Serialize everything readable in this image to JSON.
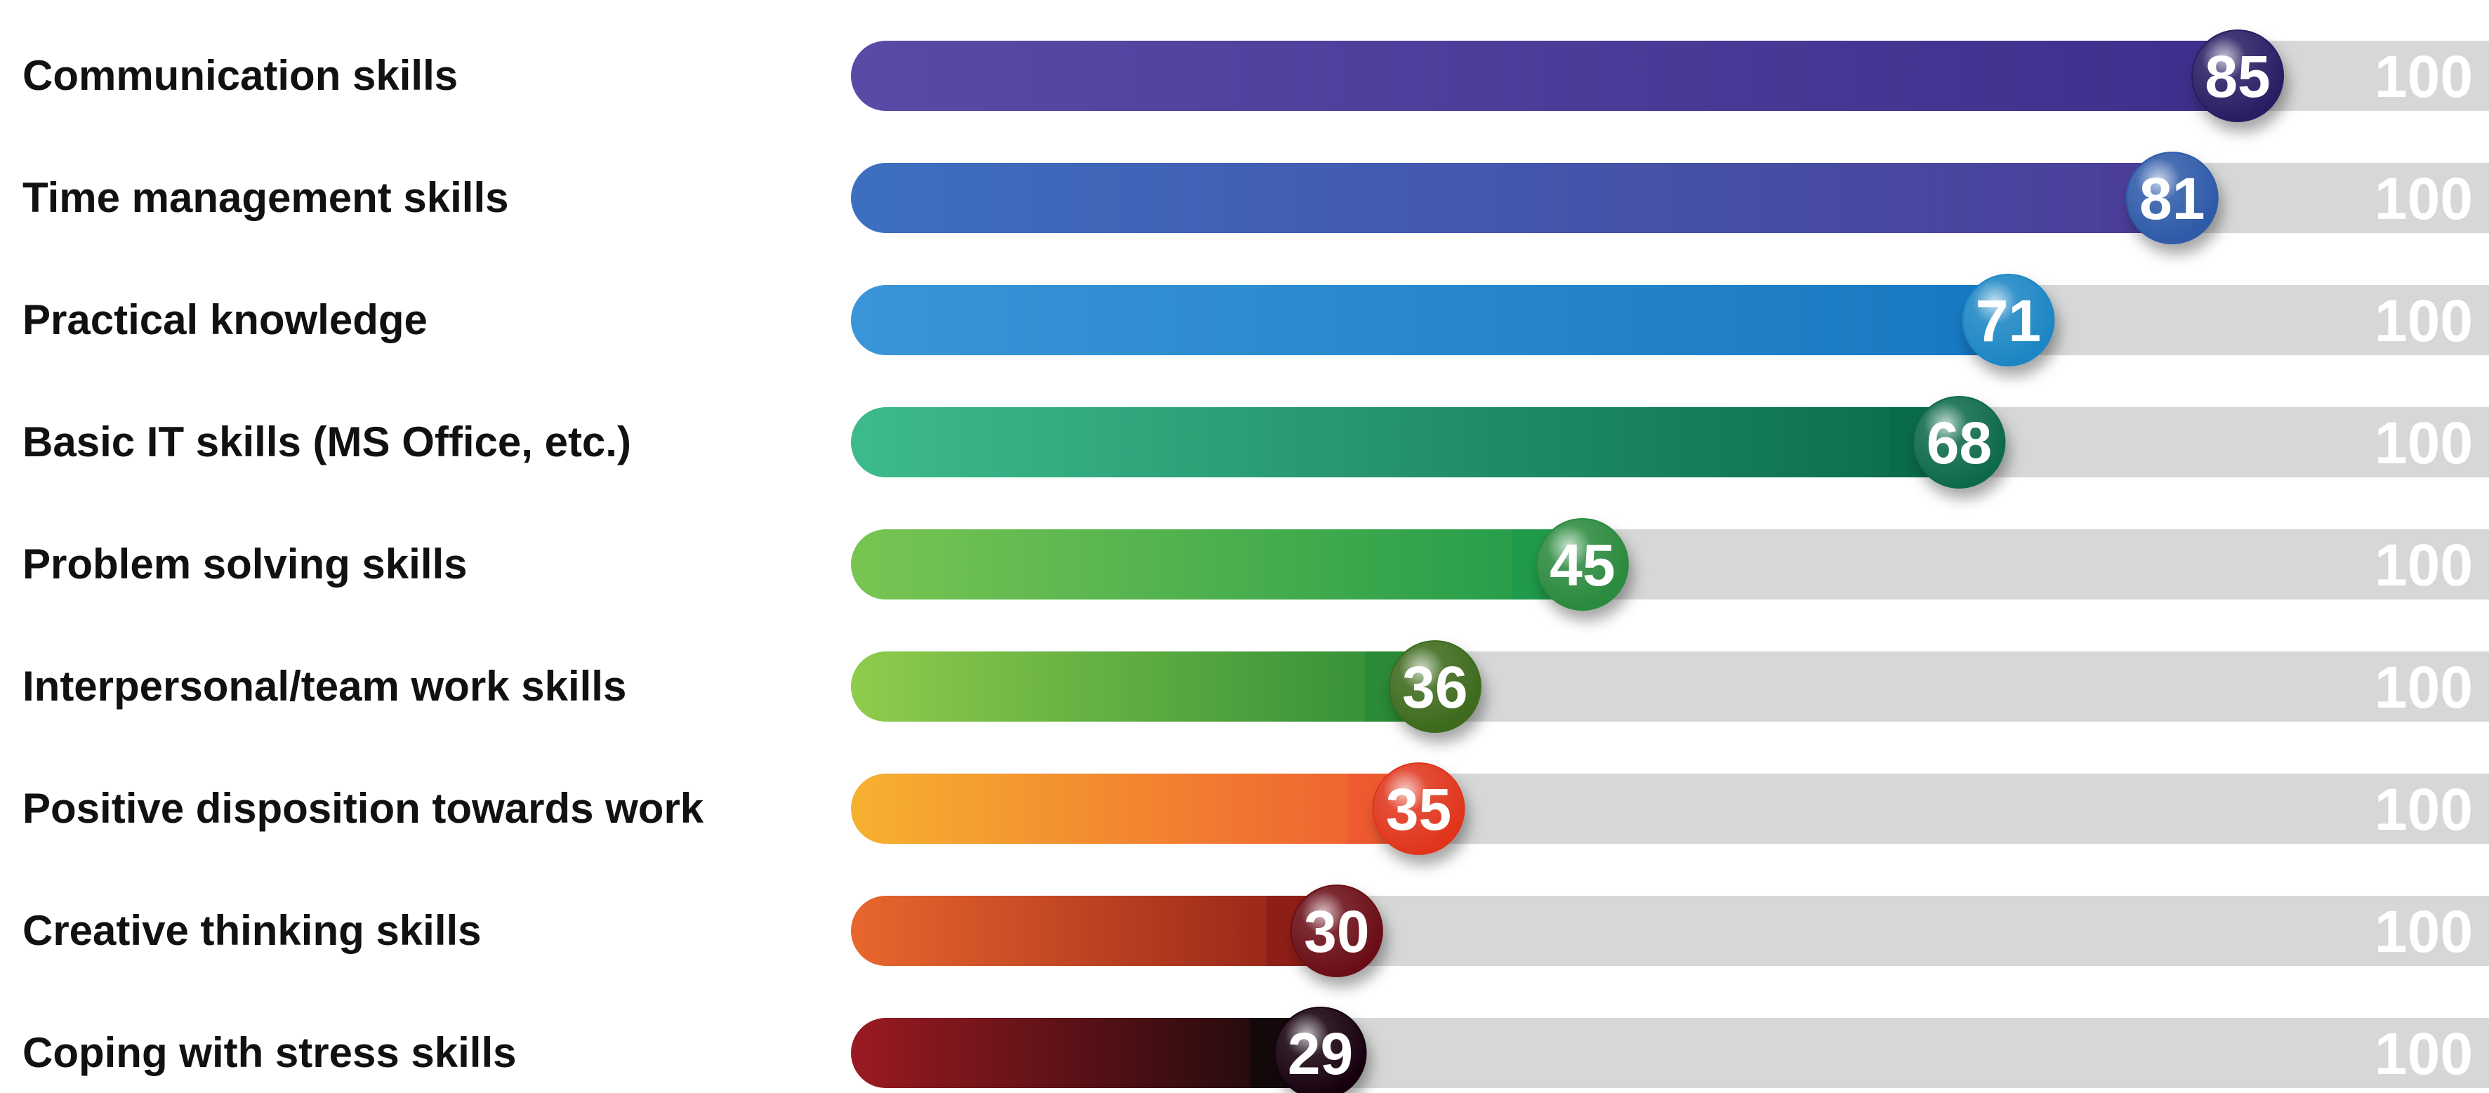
{
  "chart_data": {
    "type": "bar",
    "orientation": "horizontal",
    "title": "",
    "xlabel": "",
    "ylabel": "",
    "xlim": [
      0,
      100
    ],
    "grid": false,
    "legend": "none",
    "categories": [
      "Communication skills",
      "Time management skills",
      "Practical knowledge",
      "Basic IT skills (MS Office, etc.)",
      "Problem solving skills",
      "Interpersonal/team work skills",
      "Positive disposition towards work",
      "Creative thinking skills",
      "Coping with stress skills"
    ],
    "values": [
      85,
      81,
      71,
      68,
      45,
      36,
      35,
      30,
      29
    ],
    "max_label": "100",
    "track_color": "#d6d8d7",
    "bar_colors": [
      [
        "#5a4aa6",
        "#3f2f8c"
      ],
      [
        "#3d6fc0",
        "#4b3e98"
      ],
      [
        "#3a95d8",
        "#1779c2"
      ],
      [
        "#3dbb8c",
        "#0a6a4c"
      ],
      [
        "#79c552",
        "#1f9a4a"
      ],
      [
        "#8fcc4c",
        "#2b8a36"
      ],
      [
        "#f6b130",
        "#ee5a30"
      ],
      [
        "#e9672e",
        "#8e1e16"
      ],
      [
        "#9a1a22",
        "#14080a"
      ]
    ],
    "marker_colors": [
      "#2c1f63",
      "#2d5aa8",
      "#1a86c4",
      "#0d6b4a",
      "#2a8a3c",
      "#3c6a1e",
      "#e0351e",
      "#6a0d12",
      "#150609"
    ]
  }
}
